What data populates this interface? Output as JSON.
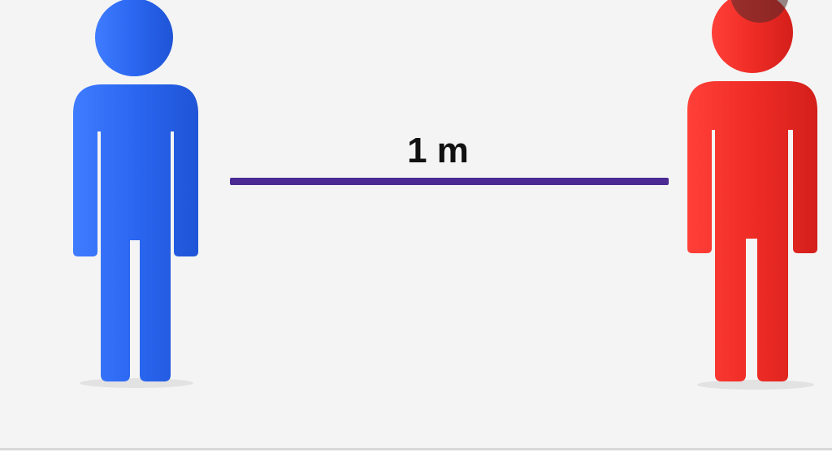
{
  "distance_label": "1 m",
  "colors": {
    "left_person": "#2a6bf2",
    "right_person": "#f0302c",
    "distance_line": "#4b2a94",
    "background": "#f4f4f4"
  },
  "icons": {
    "left": "person-icon",
    "right": "person-icon"
  }
}
